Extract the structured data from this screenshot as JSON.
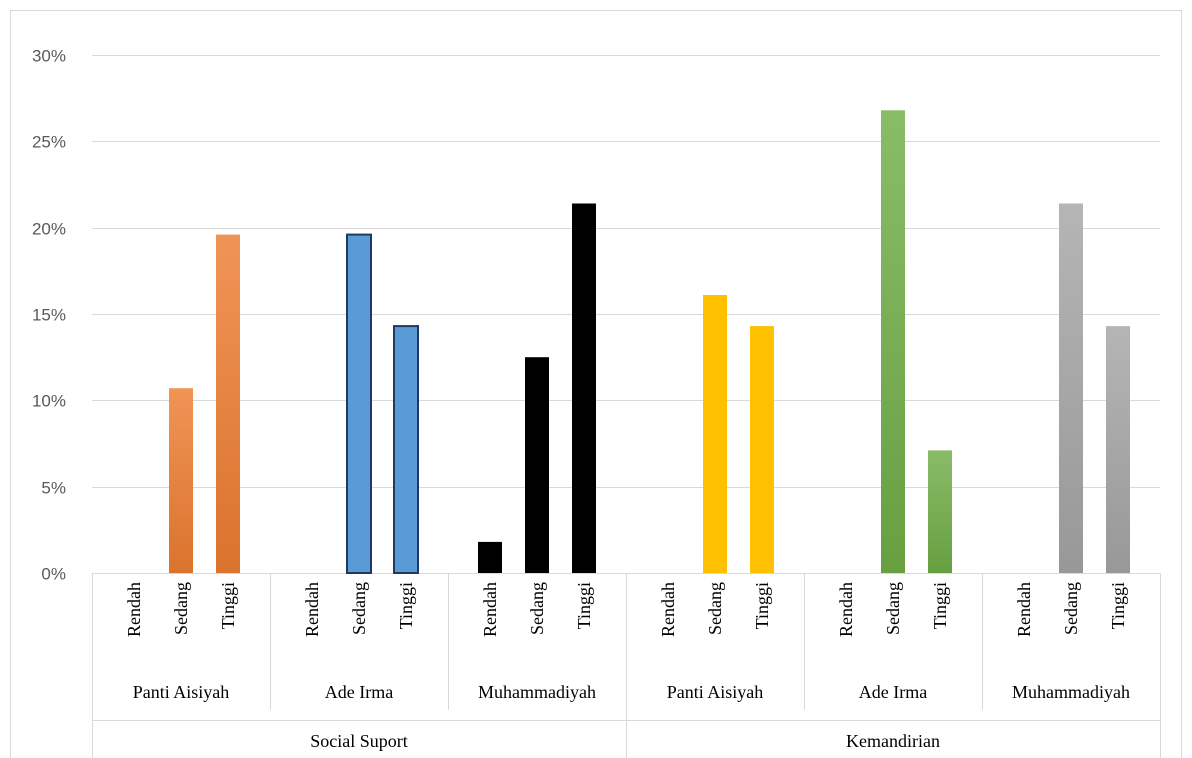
{
  "chart_data": {
    "type": "bar",
    "title": "",
    "xlabel": "",
    "ylabel": "",
    "ylim": [
      0,
      30
    ],
    "yticks": [
      "0%",
      "5%",
      "10%",
      "15%",
      "20%",
      "25%",
      "30%"
    ],
    "grid": true,
    "legend": "none",
    "groups": [
      {
        "name": "Social Suport",
        "subgroups": [
          {
            "name": "Panti Aisiyah",
            "color": "#ed7d31",
            "categories": [
              "Rendah",
              "Sedang",
              "Tinggi"
            ],
            "values": [
              0,
              10.7,
              19.6
            ]
          },
          {
            "name": "Ade Irma",
            "color": "#5b9bd5",
            "categories": [
              "Rendah",
              "Sedang",
              "Tinggi"
            ],
            "values": [
              0,
              19.6,
              14.3
            ]
          },
          {
            "name": "Muhammadiyah",
            "color": "#000000",
            "categories": [
              "Rendah",
              "Sedang",
              "Tinggi"
            ],
            "values": [
              1.8,
              12.5,
              21.4
            ]
          }
        ]
      },
      {
        "name": "Kemandirian",
        "subgroups": [
          {
            "name": "Panti Aisiyah",
            "color": "#ffc000",
            "categories": [
              "Rendah",
              "Sedang",
              "Tinggi"
            ],
            "values": [
              0,
              16.1,
              14.3
            ]
          },
          {
            "name": "Ade Irma",
            "color": "#70ad47",
            "categories": [
              "Rendah",
              "Sedang",
              "Tinggi"
            ],
            "values": [
              0,
              26.8,
              7.1
            ]
          },
          {
            "name": "Muhammadiyah",
            "color": "#a5a5a5",
            "categories": [
              "Rendah",
              "Sedang",
              "Tinggi"
            ],
            "values": [
              0,
              21.4,
              14.3
            ]
          }
        ]
      }
    ]
  }
}
